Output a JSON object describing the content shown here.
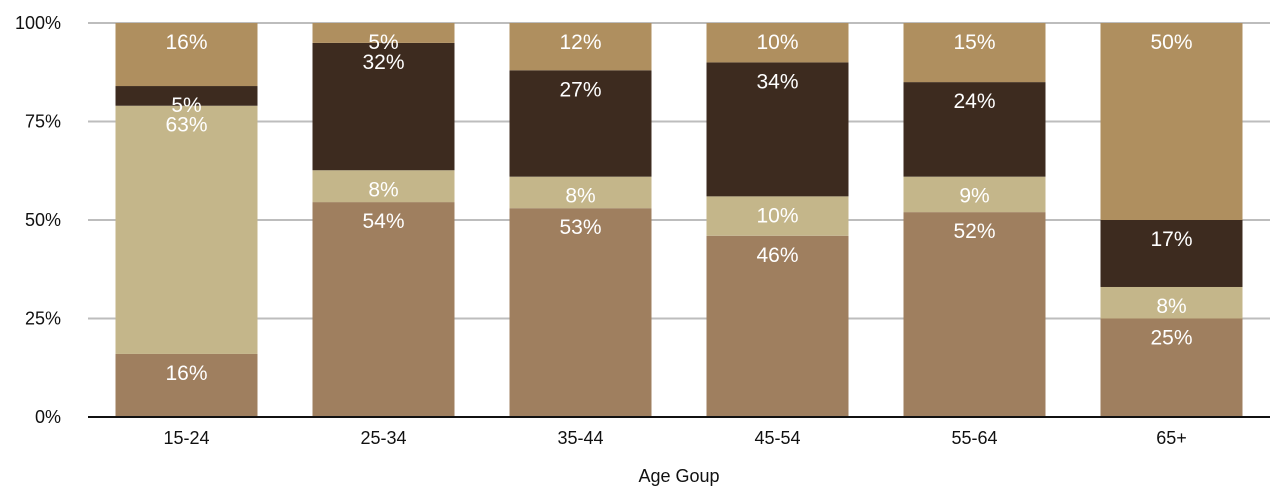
{
  "chart_data": {
    "type": "bar",
    "stacked": true,
    "normalized": true,
    "xlabel": "Age Goup",
    "ylabel": "",
    "ylim": [
      0,
      100
    ],
    "yticks": [
      "0%",
      "25%",
      "50%",
      "75%",
      "100%"
    ],
    "grid": true,
    "categories": [
      "15-24",
      "25-34",
      "35-44",
      "45-54",
      "55-64",
      "65+"
    ],
    "series": [
      {
        "color": "#9f7f5f",
        "values": [
          16,
          54,
          53,
          46,
          52,
          25
        ]
      },
      {
        "color": "#c4b68a",
        "values": [
          63,
          8,
          8,
          10,
          9,
          8
        ]
      },
      {
        "color": "#3d2b1f",
        "values": [
          5,
          32,
          27,
          34,
          24,
          17
        ]
      },
      {
        "color": "#af8f5f",
        "values": [
          16,
          5,
          12,
          10,
          15,
          50
        ]
      }
    ],
    "value_labels": [
      [
        "16%",
        "54%",
        "53%",
        "46%",
        "52%",
        "25%"
      ],
      [
        "63%",
        "8%",
        "8%",
        "10%",
        "9%",
        "8%"
      ],
      [
        "5%",
        "32%",
        "27%",
        "34%",
        "24%",
        "17%"
      ],
      [
        "16%",
        "5%",
        "12%",
        "10%",
        "15%",
        "50%"
      ]
    ]
  }
}
